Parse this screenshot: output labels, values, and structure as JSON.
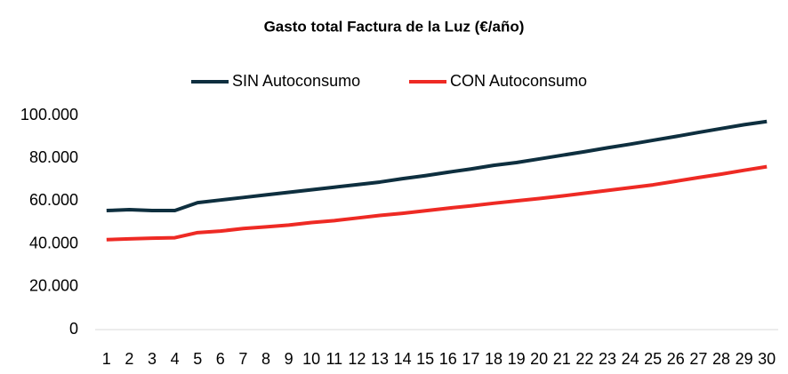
{
  "chart_data": {
    "type": "line",
    "title": "Gasto total Factura de la Luz (€/año)",
    "categories": [
      "1",
      "2",
      "3",
      "4",
      "5",
      "6",
      "7",
      "8",
      "9",
      "10",
      "11",
      "12",
      "13",
      "14",
      "15",
      "16",
      "17",
      "18",
      "19",
      "20",
      "21",
      "22",
      "23",
      "24",
      "25",
      "26",
      "27",
      "28",
      "29",
      "30"
    ],
    "series": [
      {
        "name": "SIN Autoconsumo",
        "color": "#0e2f3f",
        "values": [
          55600,
          56000,
          55600,
          55600,
          59300,
          60500,
          61700,
          62900,
          64100,
          65300,
          66500,
          67700,
          68900,
          70500,
          71900,
          73500,
          75000,
          76700,
          78000,
          79700,
          81400,
          83100,
          84900,
          86600,
          88400,
          90200,
          92100,
          93900,
          95700,
          97200
        ]
      },
      {
        "name": "CON Autoconsumo",
        "color": "#ee2a24",
        "values": [
          42000,
          42400,
          42700,
          42900,
          45300,
          46000,
          47200,
          48000,
          48800,
          50000,
          50900,
          52100,
          53300,
          54300,
          55500,
          56700,
          57800,
          59000,
          60100,
          61200,
          62400,
          63700,
          65000,
          66300,
          67600,
          69300,
          71000,
          72600,
          74400,
          76100
        ]
      }
    ],
    "ylim": [
      0,
      100000
    ],
    "yticks": [
      {
        "value": 0,
        "label": "0"
      },
      {
        "value": 20000,
        "label": "20.000"
      },
      {
        "value": 40000,
        "label": "40.000"
      },
      {
        "value": 60000,
        "label": "60.000"
      },
      {
        "value": 80000,
        "label": "80.000"
      },
      {
        "value": 100000,
        "label": "100.000"
      }
    ],
    "grid": false,
    "legend": "top"
  }
}
